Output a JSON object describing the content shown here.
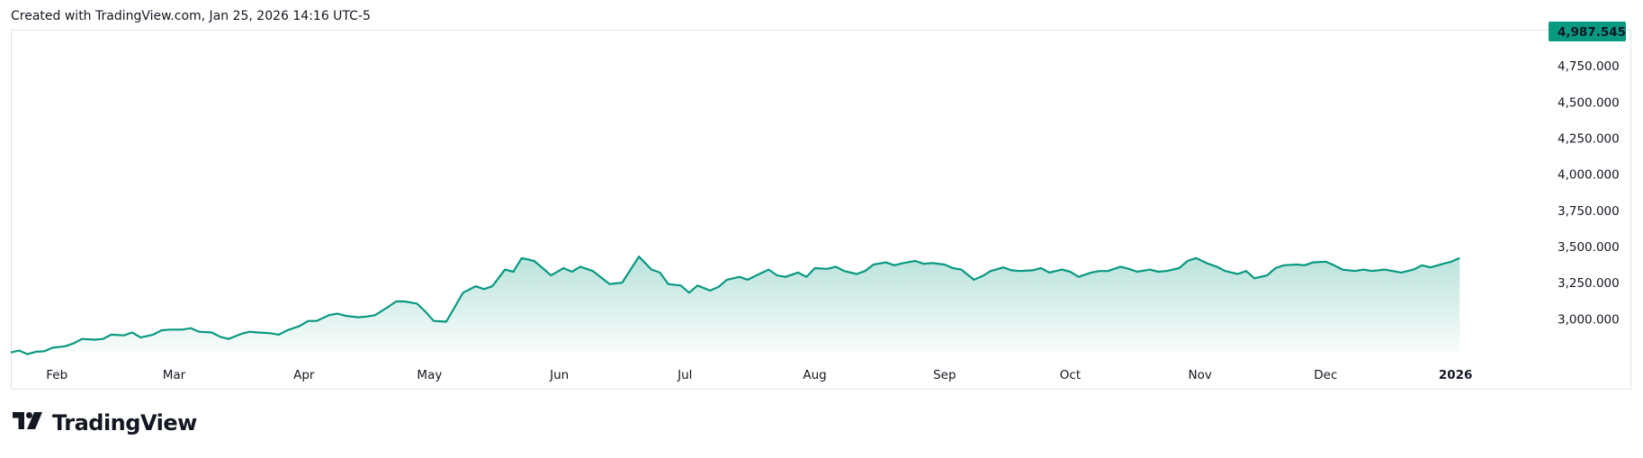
{
  "caption": "Created with TradingView.com, Jan 25, 2026 14:16 UTC-5",
  "brand": {
    "name": "TradingView",
    "logo_icon": "tradingview-logo-icon"
  },
  "colors": {
    "line": "#089981",
    "area_top": "#089981",
    "badge_bg": "#089981",
    "badge_text": "#ffffff"
  },
  "chart_data": {
    "type": "area",
    "title": "",
    "last_value_label": "4,987.545",
    "last_value": 4987.545,
    "y_ticks": [
      {
        "value": 4750,
        "label": "4,750.000"
      },
      {
        "value": 4500,
        "label": "4,500.000"
      },
      {
        "value": 4250,
        "label": "4,250.000"
      },
      {
        "value": 4000,
        "label": "4,000.000"
      },
      {
        "value": 3750,
        "label": "3,750.000"
      },
      {
        "value": 3500,
        "label": "3,500.000"
      },
      {
        "value": 3250,
        "label": "3,250.000"
      },
      {
        "value": 3000,
        "label": "3,000.000"
      }
    ],
    "ylim": [
      2765,
      4987.545
    ],
    "x_ticks": [
      {
        "date": "2025-02-01",
        "label": "Feb",
        "bold": false
      },
      {
        "date": "2025-03-01",
        "label": "Mar",
        "bold": false
      },
      {
        "date": "2025-04-01",
        "label": "Apr",
        "bold": false
      },
      {
        "date": "2025-05-01",
        "label": "May",
        "bold": false
      },
      {
        "date": "2025-06-01",
        "label": "Jun",
        "bold": false
      },
      {
        "date": "2025-07-01",
        "label": "Jul",
        "bold": false
      },
      {
        "date": "2025-08-01",
        "label": "Aug",
        "bold": false
      },
      {
        "date": "2025-09-01",
        "label": "Sep",
        "bold": false
      },
      {
        "date": "2025-10-01",
        "label": "Oct",
        "bold": false
      },
      {
        "date": "2025-11-01",
        "label": "Nov",
        "bold": false
      },
      {
        "date": "2025-12-01",
        "label": "Dec",
        "bold": false
      },
      {
        "date": "2026-01-01",
        "label": "2026",
        "bold": true
      }
    ],
    "x_range": [
      "2025-01-21",
      "2026-01-23"
    ],
    "series": [
      {
        "values": [
          [
            "2025-01-21",
            2767
          ],
          [
            "2025-01-23",
            2780
          ],
          [
            "2025-01-25",
            2755
          ],
          [
            "2025-01-27",
            2772
          ],
          [
            "2025-01-29",
            2775
          ],
          [
            "2025-01-31",
            2800
          ],
          [
            "2025-02-03",
            2810
          ],
          [
            "2025-02-05",
            2830
          ],
          [
            "2025-02-07",
            2860
          ],
          [
            "2025-02-10",
            2855
          ],
          [
            "2025-02-12",
            2860
          ],
          [
            "2025-02-14",
            2890
          ],
          [
            "2025-02-17",
            2885
          ],
          [
            "2025-02-19",
            2905
          ],
          [
            "2025-02-21",
            2870
          ],
          [
            "2025-02-24",
            2890
          ],
          [
            "2025-02-26",
            2920
          ],
          [
            "2025-02-28",
            2925
          ],
          [
            "2025-03-03",
            2925
          ],
          [
            "2025-03-05",
            2935
          ],
          [
            "2025-03-07",
            2910
          ],
          [
            "2025-03-10",
            2905
          ],
          [
            "2025-03-12",
            2875
          ],
          [
            "2025-03-14",
            2860
          ],
          [
            "2025-03-17",
            2895
          ],
          [
            "2025-03-19",
            2910
          ],
          [
            "2025-03-21",
            2905
          ],
          [
            "2025-03-24",
            2900
          ],
          [
            "2025-03-26",
            2890
          ],
          [
            "2025-03-28",
            2920
          ],
          [
            "2025-03-31",
            2950
          ],
          [
            "2025-04-02",
            2985
          ],
          [
            "2025-04-04",
            2985
          ],
          [
            "2025-04-07",
            3025
          ],
          [
            "2025-04-09",
            3035
          ],
          [
            "2025-04-11",
            3020
          ],
          [
            "2025-04-14",
            3010
          ],
          [
            "2025-04-16",
            3015
          ],
          [
            "2025-04-18",
            3025
          ],
          [
            "2025-04-21",
            3080
          ],
          [
            "2025-04-23",
            3120
          ],
          [
            "2025-04-25",
            3120
          ],
          [
            "2025-04-28",
            3105
          ],
          [
            "2025-04-30",
            3050
          ],
          [
            "2025-05-02",
            2985
          ],
          [
            "2025-05-05",
            2980
          ],
          [
            "2025-05-07",
            3080
          ],
          [
            "2025-05-09",
            3180
          ],
          [
            "2025-05-12",
            3225
          ],
          [
            "2025-05-14",
            3205
          ],
          [
            "2025-05-16",
            3225
          ],
          [
            "2025-05-19",
            3340
          ],
          [
            "2025-05-21",
            3325
          ],
          [
            "2025-05-23",
            3420
          ],
          [
            "2025-05-26",
            3400
          ],
          [
            "2025-05-28",
            3350
          ],
          [
            "2025-05-30",
            3300
          ],
          [
            "2025-06-02",
            3350
          ],
          [
            "2025-06-04",
            3325
          ],
          [
            "2025-06-06",
            3360
          ],
          [
            "2025-06-09",
            3330
          ],
          [
            "2025-06-11",
            3285
          ],
          [
            "2025-06-13",
            3240
          ],
          [
            "2025-06-16",
            3250
          ],
          [
            "2025-06-18",
            3340
          ],
          [
            "2025-06-20",
            3430
          ],
          [
            "2025-06-23",
            3340
          ],
          [
            "2025-06-25",
            3320
          ],
          [
            "2025-06-27",
            3240
          ],
          [
            "2025-06-30",
            3230
          ],
          [
            "2025-07-02",
            3180
          ],
          [
            "2025-07-04",
            3230
          ],
          [
            "2025-07-07",
            3195
          ],
          [
            "2025-07-09",
            3220
          ],
          [
            "2025-07-11",
            3270
          ],
          [
            "2025-07-14",
            3290
          ],
          [
            "2025-07-16",
            3270
          ],
          [
            "2025-07-18",
            3300
          ],
          [
            "2025-07-21",
            3340
          ],
          [
            "2025-07-23",
            3300
          ],
          [
            "2025-07-25",
            3290
          ],
          [
            "2025-07-28",
            3320
          ],
          [
            "2025-07-30",
            3290
          ],
          [
            "2025-08-01",
            3350
          ],
          [
            "2025-08-04",
            3345
          ],
          [
            "2025-08-06",
            3360
          ],
          [
            "2025-08-08",
            3330
          ],
          [
            "2025-08-11",
            3310
          ],
          [
            "2025-08-13",
            3330
          ],
          [
            "2025-08-15",
            3375
          ],
          [
            "2025-08-18",
            3390
          ],
          [
            "2025-08-20",
            3370
          ],
          [
            "2025-08-22",
            3385
          ],
          [
            "2025-08-25",
            3400
          ],
          [
            "2025-08-27",
            3380
          ],
          [
            "2025-08-29",
            3385
          ],
          [
            "2025-09-01",
            3375
          ],
          [
            "2025-09-03",
            3350
          ],
          [
            "2025-09-05",
            3340
          ],
          [
            "2025-09-08",
            3270
          ],
          [
            "2025-09-10",
            3295
          ],
          [
            "2025-09-12",
            3330
          ],
          [
            "2025-09-15",
            3355
          ],
          [
            "2025-09-17",
            3335
          ],
          [
            "2025-09-19",
            3330
          ],
          [
            "2025-09-22",
            3335
          ],
          [
            "2025-09-24",
            3350
          ],
          [
            "2025-09-26",
            3320
          ],
          [
            "2025-09-29",
            3340
          ],
          [
            "2025-10-01",
            3325
          ],
          [
            "2025-10-03",
            3290
          ],
          [
            "2025-10-06",
            3320
          ],
          [
            "2025-10-08",
            3330
          ],
          [
            "2025-10-10",
            3330
          ],
          [
            "2025-10-13",
            3360
          ],
          [
            "2025-10-15",
            3345
          ],
          [
            "2025-10-17",
            3325
          ],
          [
            "2025-10-20",
            3340
          ],
          [
            "2025-10-22",
            3325
          ],
          [
            "2025-10-24",
            3330
          ],
          [
            "2025-10-27",
            3350
          ],
          [
            "2025-10-29",
            3400
          ],
          [
            "2025-10-31",
            3420
          ],
          [
            "2025-11-03",
            3380
          ],
          [
            "2025-11-05",
            3360
          ],
          [
            "2025-11-07",
            3330
          ],
          [
            "2025-11-10",
            3310
          ],
          [
            "2025-11-12",
            3330
          ],
          [
            "2025-11-14",
            3280
          ],
          [
            "2025-11-17",
            3300
          ],
          [
            "2025-11-19",
            3350
          ],
          [
            "2025-11-21",
            3370
          ],
          [
            "2025-11-24",
            3375
          ],
          [
            "2025-11-26",
            3370
          ],
          [
            "2025-11-28",
            3390
          ],
          [
            "2025-12-01",
            3395
          ],
          [
            "2025-12-03",
            3370
          ],
          [
            "2025-12-05",
            3340
          ],
          [
            "2025-12-08",
            3330
          ],
          [
            "2025-12-10",
            3340
          ],
          [
            "2025-12-12",
            3330
          ],
          [
            "2025-12-15",
            3340
          ],
          [
            "2025-12-17",
            3330
          ],
          [
            "2025-12-19",
            3320
          ],
          [
            "2025-12-22",
            3340
          ],
          [
            "2025-12-24",
            3370
          ],
          [
            "2025-12-26",
            3355
          ],
          [
            "2025-12-29",
            3380
          ],
          [
            "2025-12-31",
            3395
          ],
          [
            "2026-01-02",
            3420
          ]
        ]
      }
    ]
  }
}
